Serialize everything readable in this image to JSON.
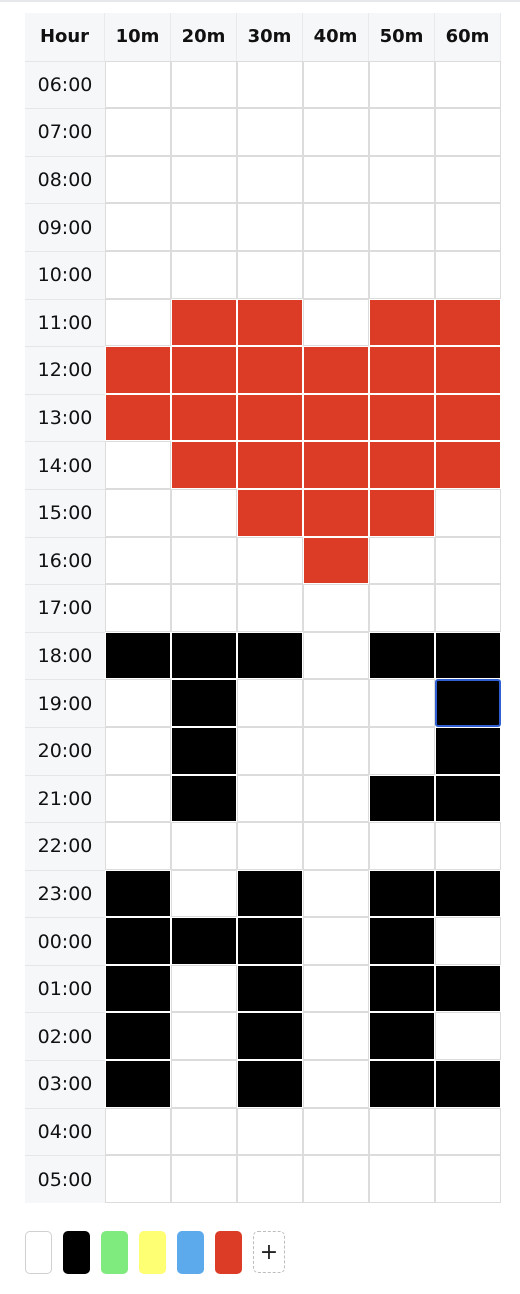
{
  "header": {
    "hour_label": "Hour",
    "columns": [
      "10m",
      "20m",
      "30m",
      "40m",
      "50m",
      "60m"
    ]
  },
  "colors": {
    "white": "#ffffff",
    "black": "#000000",
    "red": "#dc3c26",
    "selected_border": "#2f5fd0"
  },
  "rows": [
    {
      "hour": "06:00",
      "cells": [
        "white",
        "white",
        "white",
        "white",
        "white",
        "white"
      ]
    },
    {
      "hour": "07:00",
      "cells": [
        "white",
        "white",
        "white",
        "white",
        "white",
        "white"
      ]
    },
    {
      "hour": "08:00",
      "cells": [
        "white",
        "white",
        "white",
        "white",
        "white",
        "white"
      ]
    },
    {
      "hour": "09:00",
      "cells": [
        "white",
        "white",
        "white",
        "white",
        "white",
        "white"
      ]
    },
    {
      "hour": "10:00",
      "cells": [
        "white",
        "white",
        "white",
        "white",
        "white",
        "white"
      ]
    },
    {
      "hour": "11:00",
      "cells": [
        "white",
        "red",
        "red",
        "white",
        "red",
        "red"
      ]
    },
    {
      "hour": "12:00",
      "cells": [
        "red",
        "red",
        "red",
        "red",
        "red",
        "red"
      ]
    },
    {
      "hour": "13:00",
      "cells": [
        "red",
        "red",
        "red",
        "red",
        "red",
        "red"
      ]
    },
    {
      "hour": "14:00",
      "cells": [
        "white",
        "red",
        "red",
        "red",
        "red",
        "red"
      ]
    },
    {
      "hour": "15:00",
      "cells": [
        "white",
        "white",
        "red",
        "red",
        "red",
        "white"
      ]
    },
    {
      "hour": "16:00",
      "cells": [
        "white",
        "white",
        "white",
        "red",
        "white",
        "white"
      ]
    },
    {
      "hour": "17:00",
      "cells": [
        "white",
        "white",
        "white",
        "white",
        "white",
        "white"
      ]
    },
    {
      "hour": "18:00",
      "cells": [
        "black",
        "black",
        "black",
        "white",
        "black",
        "black"
      ]
    },
    {
      "hour": "19:00",
      "cells": [
        "white",
        "black",
        "white",
        "white",
        "white",
        "black"
      ]
    },
    {
      "hour": "20:00",
      "cells": [
        "white",
        "black",
        "white",
        "white",
        "white",
        "black"
      ]
    },
    {
      "hour": "21:00",
      "cells": [
        "white",
        "black",
        "white",
        "white",
        "black",
        "black"
      ]
    },
    {
      "hour": "22:00",
      "cells": [
        "white",
        "white",
        "white",
        "white",
        "white",
        "white"
      ]
    },
    {
      "hour": "23:00",
      "cells": [
        "black",
        "white",
        "black",
        "white",
        "black",
        "black"
      ]
    },
    {
      "hour": "00:00",
      "cells": [
        "black",
        "black",
        "black",
        "white",
        "black",
        "white"
      ]
    },
    {
      "hour": "01:00",
      "cells": [
        "black",
        "white",
        "black",
        "white",
        "black",
        "black"
      ]
    },
    {
      "hour": "02:00",
      "cells": [
        "black",
        "white",
        "black",
        "white",
        "black",
        "white"
      ]
    },
    {
      "hour": "03:00",
      "cells": [
        "black",
        "white",
        "black",
        "white",
        "black",
        "black"
      ]
    },
    {
      "hour": "04:00",
      "cells": [
        "white",
        "white",
        "white",
        "white",
        "white",
        "white"
      ]
    },
    {
      "hour": "05:00",
      "cells": [
        "white",
        "white",
        "white",
        "white",
        "white",
        "white"
      ]
    }
  ],
  "selected_cell": {
    "hour": "19:00",
    "column": "60m"
  },
  "palette": {
    "swatches": [
      {
        "name": "white",
        "color": "#ffffff"
      },
      {
        "name": "black",
        "color": "#000000"
      },
      {
        "name": "green",
        "color": "#7fea7e"
      },
      {
        "name": "yellow",
        "color": "#ffff73"
      },
      {
        "name": "blue",
        "color": "#5ca9ec"
      },
      {
        "name": "red",
        "color": "#dc3c26"
      }
    ],
    "add_label": "+"
  }
}
